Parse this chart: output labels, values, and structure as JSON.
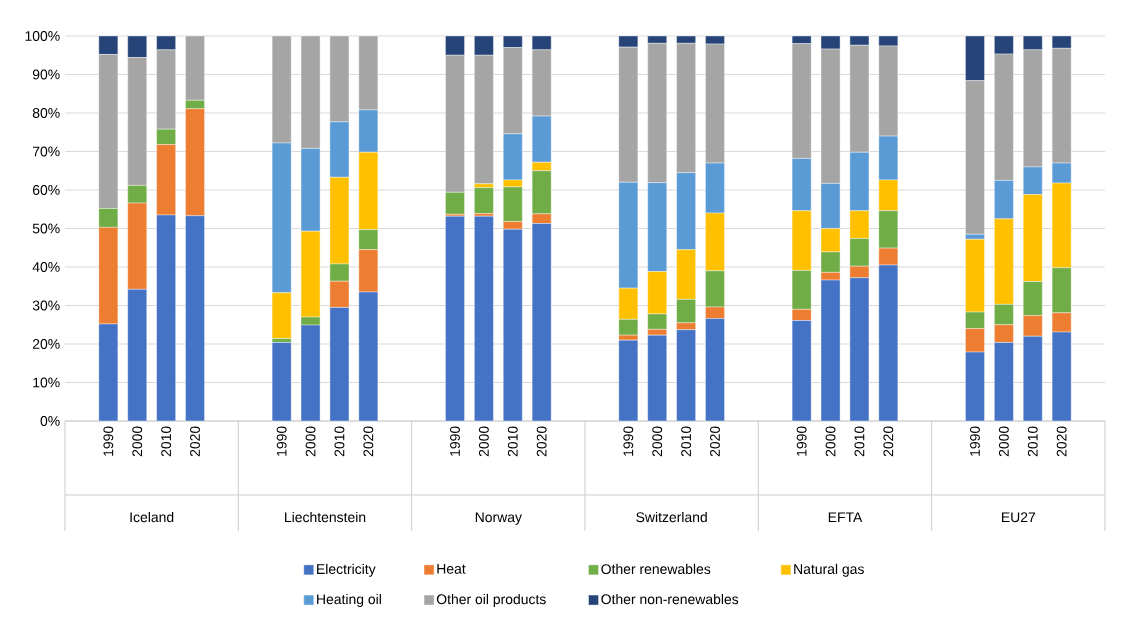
{
  "chart_data": {
    "type": "bar",
    "stacked": true,
    "categories": [
      null,
      "1990",
      "2000",
      "2010",
      "2020",
      null,
      null,
      "1990",
      "2000",
      "2010",
      "2020",
      null,
      null,
      "1990",
      "2000",
      "2010",
      "2020",
      null,
      null,
      "1990",
      "2000",
      "2010",
      "2020",
      null,
      null,
      "1990",
      "2000",
      "2010",
      "2020",
      null,
      null,
      "1990",
      "2000",
      "2010",
      "2020",
      null
    ],
    "annotations": [
      "Iceland",
      "Liechtenstein",
      "Norway",
      "Switzerland",
      "EFTA",
      "EU27"
    ],
    "ylim": [
      0,
      100
    ],
    "yticks": [
      {
        "value": 0,
        "label": "0%"
      },
      {
        "value": 10,
        "label": "10%"
      },
      {
        "value": 20,
        "label": "20%"
      },
      {
        "value": 30,
        "label": "30%"
      },
      {
        "value": 40,
        "label": "40%"
      },
      {
        "value": 50,
        "label": "50%"
      },
      {
        "value": 60,
        "label": "60%"
      },
      {
        "value": 70,
        "label": "70%"
      },
      {
        "value": 80,
        "label": "80%"
      },
      {
        "value": 90,
        "label": "90%"
      },
      {
        "value": 100,
        "label": "100%"
      }
    ],
    "grid": "y",
    "legend": "bottom",
    "series": [
      {
        "name": "Electricity",
        "color": "#4472c4",
        "values": [
          null,
          25.2,
          34.2,
          53.5,
          53.3,
          null,
          null,
          20.4,
          24.9,
          29.5,
          33.5,
          null,
          null,
          53.2,
          53.2,
          49.8,
          51.3,
          null,
          null,
          21.0,
          22.3,
          23.7,
          26.6,
          null,
          null,
          26.1,
          36.6,
          37.2,
          40.5,
          null,
          null,
          17.9,
          20.4,
          22.0,
          23.1,
          null
        ]
      },
      {
        "name": "Heat",
        "color": "#ed7d31",
        "values": [
          null,
          25.1,
          22.4,
          18.3,
          27.8,
          null,
          null,
          0,
          0,
          6.8,
          11.0,
          null,
          null,
          0.5,
          0.7,
          2.0,
          2.5,
          null,
          null,
          1.3,
          1.5,
          1.8,
          3.0,
          null,
          null,
          2.9,
          2.0,
          3.0,
          4.4,
          null,
          null,
          6.1,
          4.6,
          5.4,
          5.0,
          null
        ]
      },
      {
        "name": "Other renewables",
        "color": "#70ad47",
        "values": [
          null,
          4.9,
          4.6,
          4.0,
          2.2,
          null,
          null,
          1.0,
          2.1,
          4.5,
          5.2,
          null,
          null,
          5.7,
          6.7,
          9.0,
          11.2,
          null,
          null,
          4.1,
          4.0,
          6.1,
          9.4,
          null,
          null,
          10.1,
          5.3,
          7.2,
          9.7,
          null,
          null,
          4.3,
          5.3,
          8.8,
          11.7,
          null
        ]
      },
      {
        "name": "Natural gas",
        "color": "#ffc000",
        "values": [
          null,
          0,
          0,
          0,
          0,
          null,
          null,
          11.9,
          22.3,
          22.5,
          20.1,
          null,
          null,
          0,
          1.0,
          1.8,
          2.2,
          null,
          null,
          8.1,
          11.0,
          12.9,
          15.0,
          null,
          null,
          15.5,
          6.1,
          7.2,
          8.0,
          null,
          null,
          18.9,
          22.2,
          22.6,
          22.0,
          null
        ]
      },
      {
        "name": "Heating oil",
        "color": "#5b9bd5",
        "values": [
          null,
          0,
          0,
          0,
          0,
          null,
          null,
          38.9,
          21.5,
          14.4,
          11.0,
          null,
          null,
          0,
          0,
          12.0,
          12.0,
          null,
          null,
          27.5,
          23.1,
          20.0,
          13.0,
          null,
          null,
          13.6,
          11.7,
          15.2,
          11.4,
          null,
          null,
          1.3,
          10.0,
          7.2,
          5.2,
          null
        ]
      },
      {
        "name": "Other oil products",
        "color": "#a5a5a5",
        "values": [
          null,
          40.0,
          33.2,
          20.6,
          16.7,
          null,
          null,
          27.8,
          29.2,
          22.3,
          19.2,
          null,
          null,
          35.6,
          33.4,
          22.4,
          17.2,
          null,
          null,
          35.1,
          36.2,
          33.6,
          30.9,
          null,
          null,
          29.8,
          34.9,
          27.8,
          23.4,
          null,
          null,
          39.9,
          32.8,
          30.4,
          29.8,
          null
        ]
      },
      {
        "name": "Other non-renewables",
        "color": "#264478",
        "values": [
          null,
          4.8,
          5.6,
          3.6,
          0,
          null,
          null,
          0,
          0,
          0,
          0,
          null,
          null,
          5.0,
          5.0,
          3.0,
          3.6,
          null,
          null,
          2.9,
          1.9,
          1.9,
          2.1,
          null,
          null,
          2.0,
          3.4,
          2.4,
          2.6,
          null,
          null,
          11.6,
          4.7,
          3.6,
          3.2,
          null
        ]
      }
    ]
  }
}
